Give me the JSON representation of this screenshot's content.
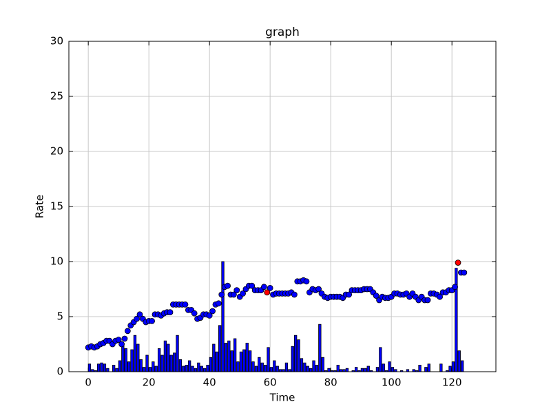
{
  "chart_data": {
    "type": "combo",
    "title": "graph",
    "x_label": "Time",
    "y_label": "Rate",
    "xlim": [
      -6.4,
      134.5
    ],
    "xticks": [
      0,
      20,
      40,
      60,
      80,
      100,
      120
    ],
    "ylim": [
      0,
      30
    ],
    "yticks": [
      0,
      5,
      10,
      15,
      20,
      25,
      30
    ],
    "grid": true,
    "series": [
      {
        "type": "bar",
        "color": "#0000ff",
        "x": [
          0,
          1,
          2,
          3,
          4,
          5,
          6,
          7,
          8,
          9,
          10,
          11,
          12,
          13,
          14,
          15,
          16,
          17,
          18,
          19,
          20,
          21,
          22,
          23,
          24,
          25,
          26,
          27,
          28,
          29,
          30,
          31,
          32,
          33,
          34,
          35,
          36,
          37,
          38,
          39,
          40,
          41,
          42,
          43,
          44,
          45,
          46,
          47,
          48,
          49,
          50,
          51,
          52,
          53,
          54,
          55,
          56,
          57,
          58,
          59,
          60,
          61,
          62,
          63,
          64,
          65,
          66,
          67,
          68,
          69,
          70,
          71,
          72,
          73,
          74,
          75,
          76,
          77,
          78,
          79,
          80,
          81,
          82,
          83,
          84,
          85,
          86,
          87,
          88,
          89,
          90,
          91,
          92,
          93,
          94,
          95,
          96,
          97,
          98,
          99,
          100,
          101,
          102,
          103,
          104,
          105,
          106,
          107,
          108,
          109,
          110,
          111,
          112,
          113,
          114,
          115,
          116,
          117,
          118,
          119,
          120,
          121,
          122,
          123
        ],
        "values": [
          0.7,
          0.2,
          0.1,
          0.7,
          0.8,
          0.7,
          0.3,
          0,
          0.6,
          0.3,
          1.0,
          2.6,
          2.1,
          0.9,
          2.0,
          3.3,
          2.5,
          1.1,
          0.4,
          1.5,
          0.4,
          0.9,
          0.5,
          2.1,
          1.5,
          2.8,
          2.5,
          1.5,
          1.7,
          3.3,
          1.1,
          0.5,
          0.6,
          1.0,
          0.5,
          0.3,
          0.8,
          0.5,
          0.3,
          0.6,
          1.3,
          2.5,
          1.8,
          4.2,
          10,
          2.6,
          2.8,
          1.9,
          3.0,
          0.9,
          1.8,
          2.0,
          2.6,
          1.9,
          0.9,
          0.5,
          1.3,
          0.8,
          0.6,
          2.2,
          0.4,
          1.0,
          0.5,
          0.2,
          0.2,
          0.8,
          0.2,
          2.3,
          3.3,
          2.9,
          1.2,
          0.8,
          0.5,
          0.3,
          1.0,
          0.6,
          4.3,
          1.3,
          0.1,
          0.3,
          0.1,
          0.1,
          0.6,
          0.2,
          0.2,
          0.3,
          0,
          0.1,
          0.4,
          0.1,
          0.3,
          0.3,
          0.5,
          0.1,
          0,
          0.4,
          2.2,
          0.7,
          0.1,
          0.9,
          0.4,
          0.2,
          0,
          0.1,
          0,
          0.2,
          0,
          0.2,
          0.1,
          0.6,
          0,
          0.4,
          0.7,
          0,
          0,
          0,
          0.7,
          0,
          0.1,
          0.5,
          0.9,
          9.4,
          1.9,
          1.0
        ]
      },
      {
        "type": "scatter",
        "color": "#0000ff",
        "x": [
          0,
          1,
          2,
          3,
          4,
          5,
          6,
          7,
          8,
          9,
          10,
          11,
          12,
          13,
          14,
          15,
          16,
          17,
          18,
          19,
          20,
          21,
          22,
          23,
          24,
          25,
          26,
          27,
          28,
          29,
          30,
          31,
          32,
          33,
          34,
          35,
          36,
          37,
          38,
          39,
          40,
          41,
          42,
          43,
          44,
          45,
          46,
          47,
          48,
          49,
          50,
          51,
          52,
          53,
          54,
          55,
          56,
          57,
          58,
          60,
          61,
          62,
          63,
          64,
          65,
          66,
          67,
          68,
          69,
          70,
          71,
          72,
          73,
          74,
          75,
          76,
          77,
          78,
          79,
          80,
          81,
          82,
          83,
          84,
          85,
          86,
          87,
          88,
          89,
          90,
          91,
          92,
          93,
          94,
          95,
          96,
          97,
          98,
          99,
          100,
          101,
          102,
          103,
          104,
          105,
          106,
          107,
          108,
          109,
          110,
          111,
          112,
          113,
          114,
          115,
          116,
          117,
          118,
          119,
          120,
          121,
          123,
          124
        ],
        "values": [
          2.2,
          2.3,
          2.2,
          2.3,
          2.5,
          2.6,
          2.8,
          2.8,
          2.5,
          2.8,
          2.9,
          2.5,
          3.0,
          3.7,
          4.2,
          4.5,
          4.8,
          5.2,
          4.8,
          4.5,
          4.6,
          4.6,
          5.2,
          5.2,
          5.1,
          5.3,
          5.4,
          5.4,
          6.1,
          6.1,
          6.1,
          6.1,
          6.1,
          5.6,
          5.6,
          5.3,
          4.8,
          4.9,
          5.2,
          5.2,
          5.1,
          5.5,
          6.1,
          6.2,
          7.0,
          7.7,
          7.8,
          7.0,
          7.0,
          7.4,
          6.8,
          7.1,
          7.5,
          7.8,
          7.8,
          7.4,
          7.4,
          7.4,
          7.7,
          7.6,
          7.0,
          7.1,
          7.1,
          7.1,
          7.1,
          7.1,
          7.2,
          7.0,
          8.2,
          8.2,
          8.3,
          8.2,
          7.2,
          7.5,
          7.4,
          7.5,
          7.1,
          6.8,
          6.7,
          6.8,
          6.8,
          6.8,
          6.8,
          6.7,
          7.0,
          7.0,
          7.4,
          7.4,
          7.4,
          7.4,
          7.5,
          7.5,
          7.5,
          7.2,
          6.9,
          6.5,
          6.8,
          6.7,
          6.7,
          6.8,
          7.1,
          7.1,
          7.0,
          7.0,
          7.1,
          6.8,
          7.1,
          6.8,
          6.5,
          6.8,
          6.5,
          6.5,
          7.1,
          7.1,
          7.0,
          6.8,
          7.2,
          7.2,
          7.4,
          7.4,
          7.7,
          9.0,
          9.0
        ]
      },
      {
        "type": "scatter",
        "color": "#ff0000",
        "x": [
          59,
          122
        ],
        "values": [
          7.2,
          9.9
        ]
      }
    ]
  }
}
